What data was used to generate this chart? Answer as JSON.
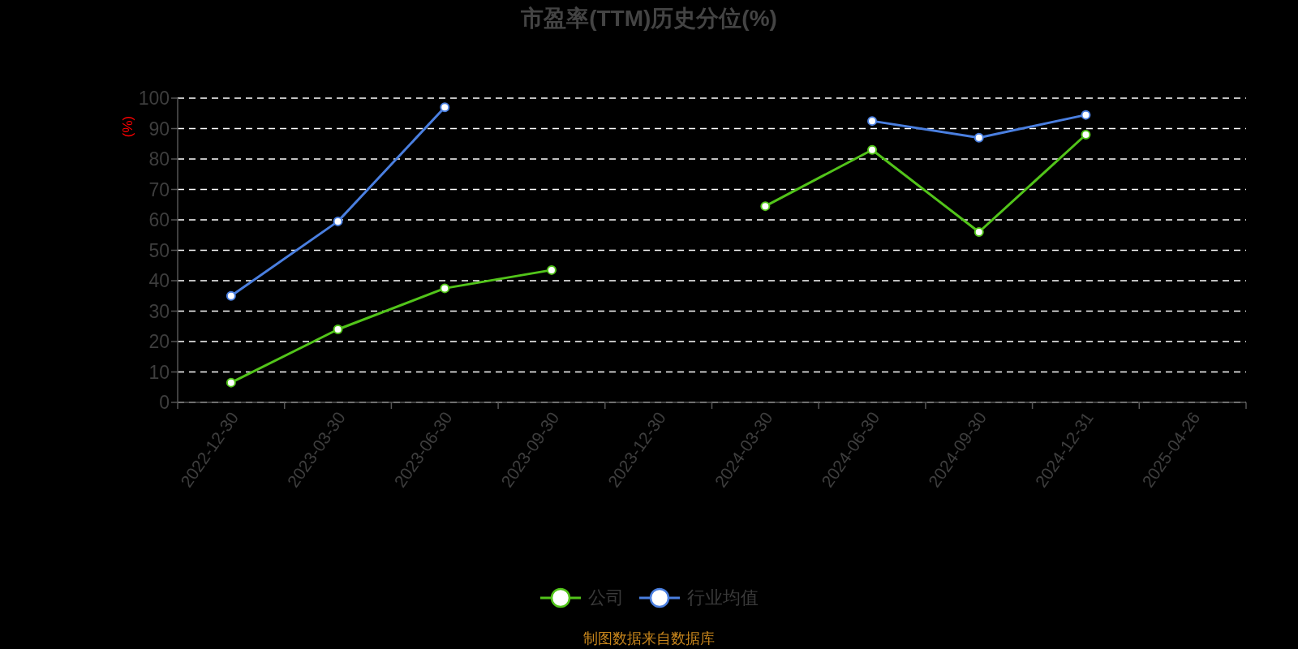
{
  "chart_data": {
    "type": "line",
    "title": "市盈率(TTM)历史分位(%)",
    "ylabel": "(%)",
    "categories": [
      "2022-12-30",
      "2023-03-30",
      "2023-06-30",
      "2023-09-30",
      "2023-12-30",
      "2024-03-30",
      "2024-06-30",
      "2024-09-30",
      "2024-12-31",
      "2025-04-26"
    ],
    "series": [
      {
        "name": "公司",
        "color": "#52c41a",
        "values": [
          6.5,
          24,
          37.5,
          43.5,
          null,
          64.5,
          83,
          56,
          88,
          null
        ]
      },
      {
        "name": "行业均值",
        "color": "#4a7fe0",
        "values": [
          35,
          59.5,
          97,
          null,
          null,
          null,
          92.5,
          87,
          94.5,
          null
        ]
      }
    ],
    "ylim": [
      0,
      100
    ],
    "yticks": [
      0,
      10,
      20,
      30,
      40,
      50,
      60,
      70,
      80,
      90,
      100
    ],
    "grid": "y",
    "legend": "bottom",
    "marker": "circle",
    "line_style": "solid",
    "annotations": [
      "制图数据来自数据库"
    ]
  }
}
